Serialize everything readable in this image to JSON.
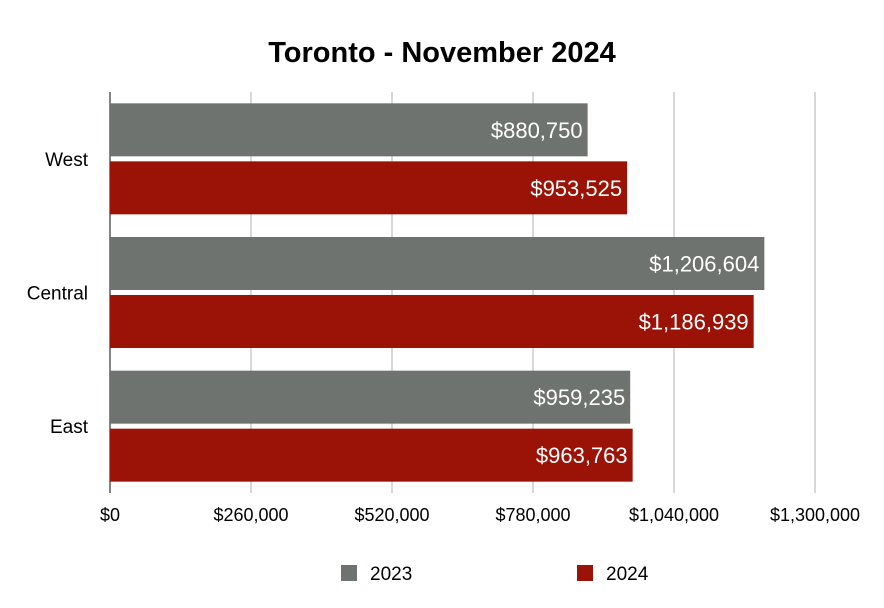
{
  "chart_data": {
    "type": "bar",
    "orientation": "horizontal",
    "title": "Toronto - November 2024",
    "categories": [
      "West",
      "Central",
      "East"
    ],
    "series": [
      {
        "name": "2023",
        "color": "#6f7370",
        "values": [
          880750,
          1206604,
          959235
        ],
        "labels": [
          "$880,750",
          "$1,206,604",
          "$959,235"
        ]
      },
      {
        "name": "2024",
        "color": "#9b1306",
        "values": [
          953525,
          1186939,
          963763
        ],
        "labels": [
          "$953,525",
          "$1,186,939",
          "$963,763"
        ]
      }
    ],
    "xlim": [
      0,
      1300000
    ],
    "xticks": [
      0,
      260000,
      520000,
      780000,
      1040000,
      1300000
    ],
    "xtick_labels": [
      "$0",
      "$260,000",
      "$520,000",
      "$780,000",
      "$1,040,000",
      "$1,300,000"
    ],
    "grid": true,
    "legend": "bottom"
  }
}
